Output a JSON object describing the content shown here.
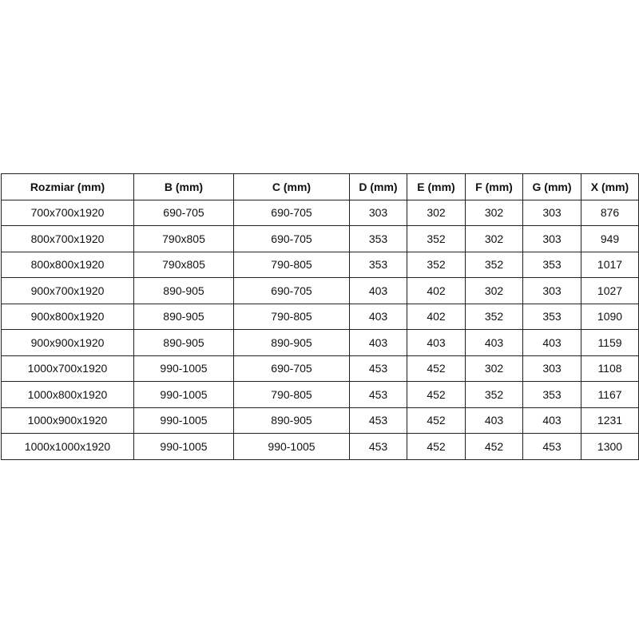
{
  "table": {
    "headers": [
      "Rozmiar (mm)",
      "B (mm)",
      "C (mm)",
      "D (mm)",
      "E (mm)",
      "F (mm)",
      "G (mm)",
      "X (mm)"
    ],
    "rows": [
      [
        "700x700x1920",
        "690-705",
        "690-705",
        "303",
        "302",
        "302",
        "303",
        "876"
      ],
      [
        "800x700x1920",
        "790x805",
        "690-705",
        "353",
        "352",
        "302",
        "303",
        "949"
      ],
      [
        "800x800x1920",
        "790x805",
        "790-805",
        "353",
        "352",
        "352",
        "353",
        "1017"
      ],
      [
        "900x700x1920",
        "890-905",
        "690-705",
        "403",
        "402",
        "302",
        "303",
        "1027"
      ],
      [
        "900x800x1920",
        "890-905",
        "790-805",
        "403",
        "402",
        "352",
        "353",
        "1090"
      ],
      [
        "900x900x1920",
        "890-905",
        "890-905",
        "403",
        "403",
        "403",
        "403",
        "1159"
      ],
      [
        "1000x700x1920",
        "990-1005",
        "690-705",
        "453",
        "452",
        "302",
        "303",
        "1108"
      ],
      [
        "1000x800x1920",
        "990-1005",
        "790-805",
        "453",
        "452",
        "352",
        "353",
        "1167"
      ],
      [
        "1000x900x1920",
        "990-1005",
        "890-905",
        "453",
        "452",
        "403",
        "403",
        "1231"
      ],
      [
        "1000x1000x1920",
        "990-1005",
        "990-1005",
        "453",
        "452",
        "452",
        "453",
        "1300"
      ]
    ]
  }
}
